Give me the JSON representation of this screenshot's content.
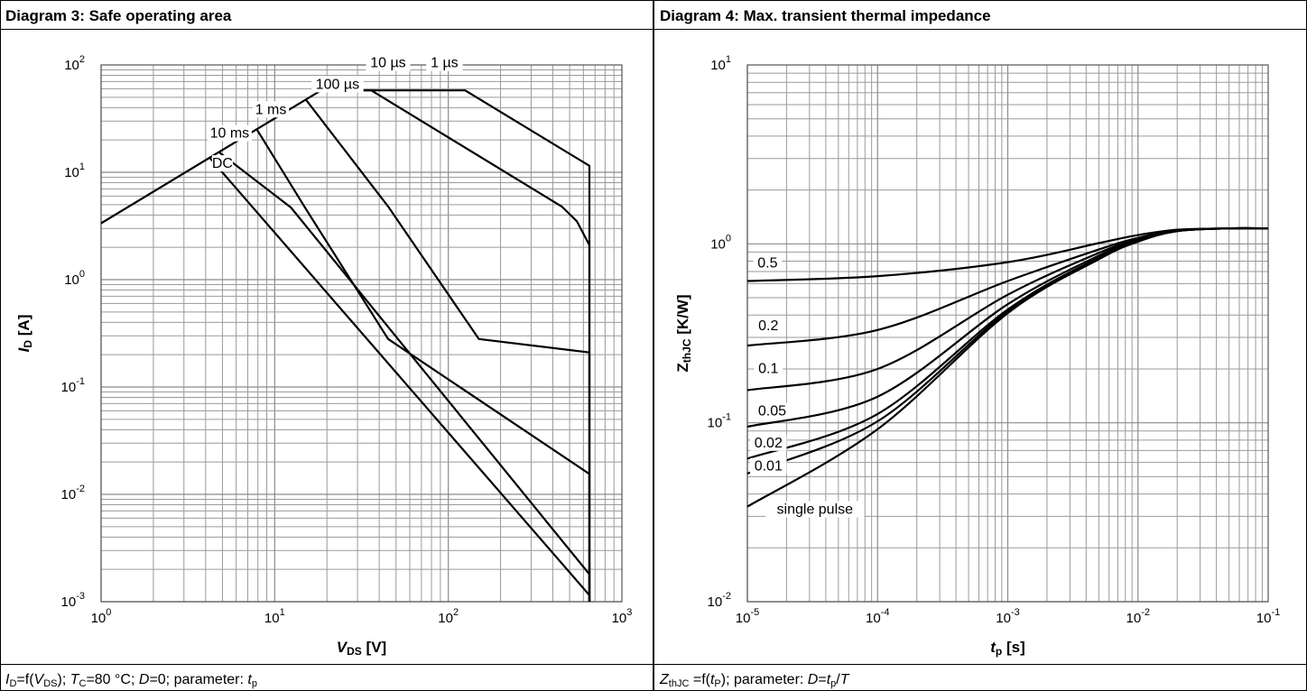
{
  "panels": [
    {
      "title": "Diagram 3: Safe operating area",
      "caption": [
        {
          "t": "I",
          "s": "i"
        },
        {
          "t": "D",
          "s": "sub"
        },
        {
          "t": "=f(",
          "s": ""
        },
        {
          "t": "V",
          "s": "i"
        },
        {
          "t": "DS",
          "s": "sub"
        },
        {
          "t": "); ",
          "s": ""
        },
        {
          "t": "T",
          "s": "i"
        },
        {
          "t": "C",
          "s": "sub"
        },
        {
          "t": "=80 °C; ",
          "s": ""
        },
        {
          "t": "D",
          "s": "i"
        },
        {
          "t": "=0; parameter: ",
          "s": ""
        },
        {
          "t": "t",
          "s": "i"
        },
        {
          "t": "p",
          "s": "sub"
        }
      ]
    },
    {
      "title": "Diagram 4: Max. transient thermal impedance",
      "caption": [
        {
          "t": "Z",
          "s": "i"
        },
        {
          "t": "thJC",
          "s": "sub"
        },
        {
          "t": " =f(",
          "s": ""
        },
        {
          "t": "t",
          "s": "i"
        },
        {
          "t": "P",
          "s": "sub"
        },
        {
          "t": "); parameter: ",
          "s": ""
        },
        {
          "t": "D",
          "s": "i"
        },
        {
          "t": "=",
          "s": ""
        },
        {
          "t": "t",
          "s": "i"
        },
        {
          "t": "p",
          "s": "sub"
        },
        {
          "t": "/",
          "s": ""
        },
        {
          "t": "T",
          "s": "i"
        }
      ]
    }
  ],
  "chart_data": [
    {
      "type": "line",
      "xscale": "log",
      "yscale": "log",
      "xlim": [
        1,
        1000
      ],
      "ylim": [
        0.001,
        100
      ],
      "xlabel": [
        {
          "t": "V",
          "s": "i"
        },
        {
          "t": "DS",
          "s": "sub"
        },
        {
          "t": " [V]",
          "s": ""
        }
      ],
      "ylabel": [
        {
          "t": "I",
          "s": "i"
        },
        {
          "t": "D",
          "s": "sub"
        },
        {
          "t": " [A]",
          "s": ""
        }
      ],
      "xticks": [
        {
          "base": "10",
          "exp": "0"
        },
        {
          "base": "10",
          "exp": "1"
        },
        {
          "base": "10",
          "exp": "2"
        },
        {
          "base": "10",
          "exp": "3"
        }
      ],
      "yticks": [
        {
          "base": "10",
          "exp": "2"
        },
        {
          "base": "10",
          "exp": "1"
        },
        {
          "base": "10",
          "exp": "0"
        },
        {
          "base": "10",
          "exp": "-1"
        },
        {
          "base": "10",
          "exp": "-2"
        },
        {
          "base": "10",
          "exp": "-3"
        }
      ],
      "grid": true,
      "series": [
        {
          "name": "1 µs",
          "x": [
            1,
            18.5,
            125,
            650,
            650
          ],
          "y": [
            3.35,
            58,
            58,
            11.5,
            0.001
          ]
        },
        {
          "name": "10 µs",
          "x": [
            18.5,
            36,
            450,
            550,
            650,
            650
          ],
          "y": [
            58,
            58,
            4.8,
            3.5,
            2.1,
            0.001
          ]
        },
        {
          "name": "100 µs",
          "x": [
            15.2,
            45,
            150,
            650,
            650
          ],
          "y": [
            47,
            4.8,
            0.28,
            0.21,
            0.001
          ]
        },
        {
          "name": "1 ms",
          "x": [
            7.9,
            15.2,
            45,
            650,
            650
          ],
          "y": [
            25,
            4.5,
            0.28,
            0.0155,
            0.001
          ]
        },
        {
          "name": "10 ms",
          "x": [
            4.8,
            12.4,
            650,
            650
          ],
          "y": [
            15.3,
            4.7,
            0.0018,
            0.001
          ]
        },
        {
          "name": "DC",
          "x": [
            4.2,
            650,
            650
          ],
          "y": [
            13.8,
            0.00115,
            0.001
          ]
        }
      ],
      "labels": [
        {
          "text": "1 µs",
          "x": 95,
          "y": 95
        },
        {
          "text": "10 µs",
          "x": 45,
          "y": 95
        },
        {
          "text": "100 µs",
          "x": 23,
          "y": 60
        },
        {
          "text": "1 ms",
          "x": 9.5,
          "y": 35
        },
        {
          "text": "10 ms",
          "x": 5.5,
          "y": 21
        },
        {
          "text": "DC",
          "x": 5,
          "y": 11
        }
      ]
    },
    {
      "type": "line",
      "xscale": "log",
      "yscale": "log",
      "xlim": [
        1e-05,
        0.1
      ],
      "ylim": [
        0.01,
        10
      ],
      "xlabel": [
        {
          "t": "t",
          "s": "i"
        },
        {
          "t": "p",
          "s": "sub"
        },
        {
          "t": " [s]",
          "s": ""
        }
      ],
      "ylabel": [
        {
          "t": "Z",
          "s": ""
        },
        {
          "t": "thJC",
          "s": "sub"
        },
        {
          "t": " [K/W]",
          "s": ""
        }
      ],
      "xticks": [
        {
          "base": "10",
          "exp": "-5"
        },
        {
          "base": "10",
          "exp": "-4"
        },
        {
          "base": "10",
          "exp": "-3"
        },
        {
          "base": "10",
          "exp": "-2"
        },
        {
          "base": "10",
          "exp": "-1"
        }
      ],
      "yticks": [
        {
          "base": "10",
          "exp": "1"
        },
        {
          "base": "10",
          "exp": "0"
        },
        {
          "base": "10",
          "exp": "-1"
        },
        {
          "base": "10",
          "exp": "-2"
        }
      ],
      "grid": true,
      "series": [
        {
          "name": "0.5",
          "x": [
            1e-05,
            0.0001,
            0.001,
            0.005,
            0.01,
            0.02,
            0.05,
            0.1
          ],
          "y": [
            0.62,
            0.66,
            0.79,
            1.01,
            1.12,
            1.2,
            1.22,
            1.22
          ]
        },
        {
          "name": "0.2",
          "x": [
            1e-05,
            0.0001,
            0.001,
            0.005,
            0.01,
            0.02,
            0.05,
            0.1
          ],
          "y": [
            0.27,
            0.33,
            0.62,
            0.93,
            1.08,
            1.19,
            1.22,
            1.22
          ]
        },
        {
          "name": "0.1",
          "x": [
            1e-05,
            0.0001,
            0.001,
            0.005,
            0.01,
            0.02,
            0.05,
            0.1
          ],
          "y": [
            0.152,
            0.2,
            0.52,
            0.89,
            1.06,
            1.19,
            1.22,
            1.22
          ]
        },
        {
          "name": "0.05",
          "x": [
            1e-05,
            0.0001,
            0.001,
            0.005,
            0.01,
            0.02,
            0.05,
            0.1
          ],
          "y": [
            0.095,
            0.14,
            0.46,
            0.86,
            1.05,
            1.18,
            1.22,
            1.22
          ]
        },
        {
          "name": "0.02",
          "x": [
            1e-05,
            0.0001,
            0.001,
            0.005,
            0.01,
            0.02,
            0.05,
            0.1
          ],
          "y": [
            0.063,
            0.112,
            0.43,
            0.84,
            1.04,
            1.18,
            1.22,
            1.22
          ]
        },
        {
          "name": "0.01",
          "x": [
            1e-05,
            0.0001,
            0.001,
            0.005,
            0.01,
            0.02,
            0.05,
            0.1
          ],
          "y": [
            0.052,
            0.102,
            0.42,
            0.83,
            1.03,
            1.18,
            1.22,
            1.22
          ]
        },
        {
          "name": "single pulse",
          "x": [
            1e-05,
            0.0001,
            0.001,
            0.005,
            0.01,
            0.02,
            0.05,
            0.1
          ],
          "y": [
            0.034,
            0.092,
            0.41,
            0.82,
            1.03,
            1.18,
            1.22,
            1.22
          ]
        }
      ],
      "labels": [
        {
          "text": "0.5",
          "x": 1.43e-05,
          "y": 0.74
        },
        {
          "text": "0.2",
          "x": 1.45e-05,
          "y": 0.33
        },
        {
          "text": "0.1",
          "x": 1.45e-05,
          "y": 0.19
        },
        {
          "text": "0.05",
          "x": 1.55e-05,
          "y": 0.11
        },
        {
          "text": "0.02",
          "x": 1.45e-05,
          "y": 0.073
        },
        {
          "text": "0.01",
          "x": 1.45e-05,
          "y": 0.054
        },
        {
          "text": "single pulse",
          "x": 3.3e-05,
          "y": 0.031
        }
      ]
    }
  ]
}
